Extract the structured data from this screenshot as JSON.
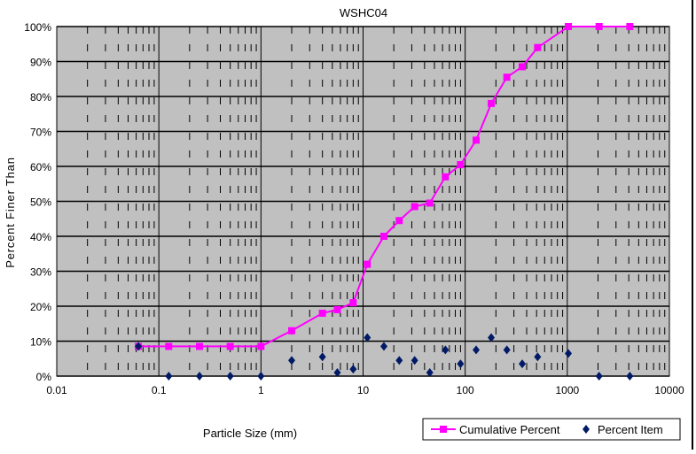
{
  "chart_data": {
    "type": "scatter",
    "title": "WSHC04",
    "xlabel": "Particle Size (mm)",
    "ylabel": "Percent Finer Than",
    "x_scale": "log",
    "xlim": [
      0.01,
      10000
    ],
    "ylim": [
      0,
      100
    ],
    "x_tick_labels": [
      "0.01",
      "0.1",
      "1",
      "10",
      "100",
      "1000",
      "10000"
    ],
    "x_tick_values": [
      0.01,
      0.1,
      1,
      10,
      100,
      1000,
      10000
    ],
    "y_tick_labels": [
      "0%",
      "10%",
      "20%",
      "30%",
      "40%",
      "50%",
      "60%",
      "70%",
      "80%",
      "90%",
      "100%"
    ],
    "y_tick_values": [
      0,
      10,
      20,
      30,
      40,
      50,
      60,
      70,
      80,
      90,
      100
    ],
    "grid": true,
    "legend_position": "bottom-right",
    "plot_background": "#c0c0c0",
    "series": [
      {
        "name": "Cumulative Percent",
        "kind": "line-square-markers",
        "color": "#ff00ff",
        "x": [
          0.063,
          0.125,
          0.25,
          0.5,
          1,
          2,
          4,
          5.6,
          8,
          11,
          16,
          22.6,
          32,
          45,
          64,
          90,
          128,
          180,
          256,
          362,
          512,
          1024,
          2048,
          4096
        ],
        "y": [
          8.5,
          8.5,
          8.5,
          8.5,
          8.5,
          13,
          18,
          19,
          21,
          32,
          40,
          44.5,
          48.5,
          49.5,
          57,
          60.5,
          67.5,
          78,
          85.5,
          88.5,
          94,
          100,
          100,
          100
        ]
      },
      {
        "name": "Percent Item",
        "kind": "scatter-diamond-markers",
        "color": "#001a66",
        "x": [
          0.063,
          0.125,
          0.25,
          0.5,
          1,
          2,
          4,
          5.6,
          8,
          11,
          16,
          22.6,
          32,
          45,
          64,
          90,
          128,
          180,
          256,
          362,
          512,
          1024,
          2048,
          4096
        ],
        "y": [
          8.5,
          0,
          0,
          0,
          0,
          4.5,
          5.5,
          1,
          2,
          11,
          8.5,
          4.5,
          4.5,
          1,
          7.5,
          3.5,
          7.5,
          11,
          7.5,
          3.5,
          5.5,
          6.5,
          0,
          0
        ]
      }
    ]
  }
}
